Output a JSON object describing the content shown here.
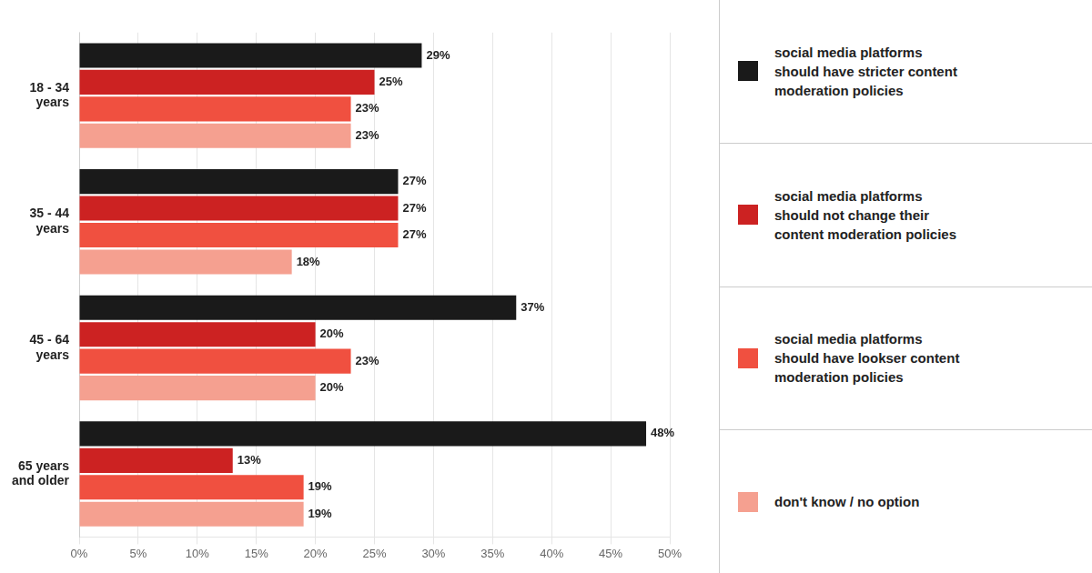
{
  "chart_data": {
    "type": "bar",
    "orientation": "horizontal",
    "categories": [
      "18 - 34\nyears",
      "35 - 44\nyears",
      "45 - 64\nyears",
      "65 years\nand older"
    ],
    "series": [
      {
        "name": "social media platforms\nshould have stricter content\nmoderation policies",
        "color": "#1a1a1a",
        "values": [
          29,
          27,
          37,
          48
        ],
        "value_labels": [
          "29%",
          "27%",
          "37%",
          "48%"
        ]
      },
      {
        "name": "social media platforms\nshould not change their\ncontent moderation policies",
        "color": "#cc2222",
        "values": [
          25,
          27,
          20,
          13
        ],
        "value_labels": [
          "25%",
          "27%",
          "20%",
          "13%"
        ]
      },
      {
        "name": "social media platforms\nshould have lookser content\nmoderation policies",
        "color": "#f05040",
        "values": [
          23,
          27,
          23,
          19
        ],
        "value_labels": [
          "23%",
          "27%",
          "23%",
          "19%"
        ]
      },
      {
        "name": "don't know / no option",
        "color": "#f5a090",
        "values": [
          23,
          18,
          20,
          19
        ],
        "value_labels": [
          "23%",
          "18%",
          "20%",
          "19%"
        ]
      }
    ],
    "xlim": [
      0,
      50
    ],
    "xticks": [
      {
        "value": 0,
        "label": "0%"
      },
      {
        "value": 5,
        "label": "5%"
      },
      {
        "value": 10,
        "label": "10%"
      },
      {
        "value": 15,
        "label": "15%"
      },
      {
        "value": 20,
        "label": "20%"
      },
      {
        "value": 25,
        "label": "25%"
      },
      {
        "value": 30,
        "label": "30%"
      },
      {
        "value": 35,
        "label": "35%"
      },
      {
        "value": 40,
        "label": "40%"
      },
      {
        "value": 45,
        "label": "45%"
      },
      {
        "value": 50,
        "label": "50%"
      }
    ],
    "grid": true,
    "legend": "right",
    "data_labels": true
  }
}
